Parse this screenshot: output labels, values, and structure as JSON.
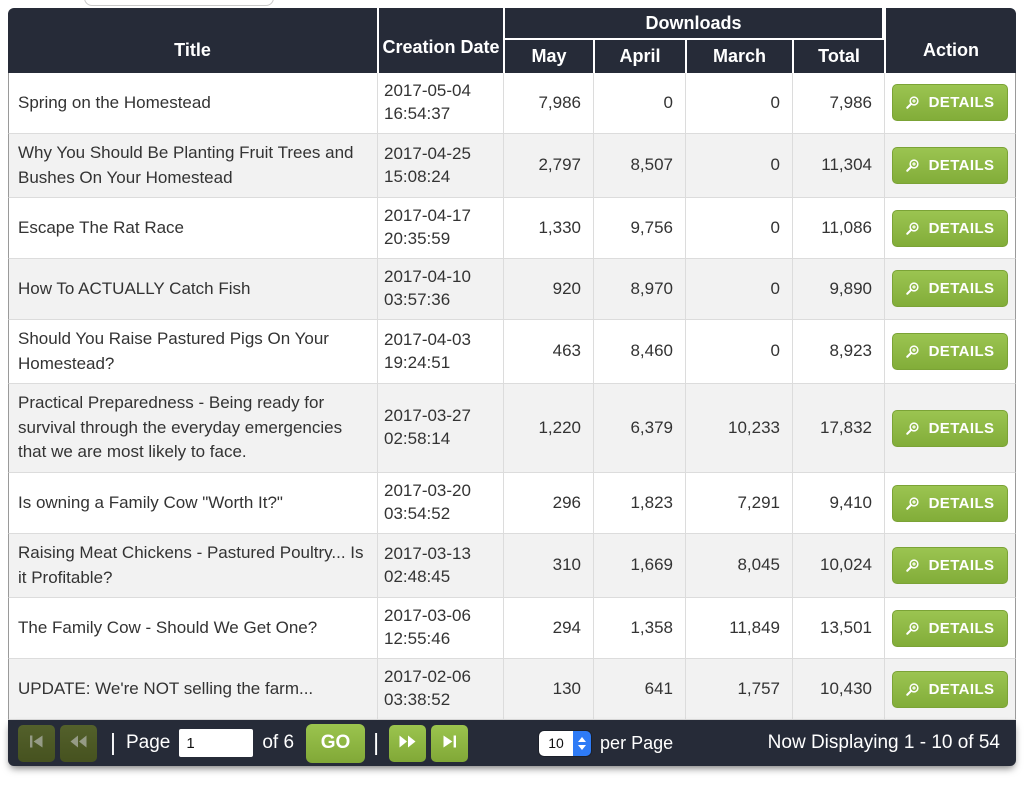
{
  "colors": {
    "header_bg": "#262b38",
    "accent_green": "#8cb43e",
    "disabled_green": "#4b5622",
    "select_blue": "#2e7bf6",
    "row_stripe": "#f2f2f2"
  },
  "table": {
    "headers": {
      "title": "Title",
      "creation_date": "Creation Date",
      "downloads": "Downloads",
      "may": "May",
      "april": "April",
      "march": "March",
      "total": "Total",
      "action": "Action"
    },
    "details_label": "DETAILS",
    "rows": [
      {
        "title": "Spring on the Homestead",
        "date": "2017-05-04 16:54:37",
        "may": "7,986",
        "april": "0",
        "march": "0",
        "total": "7,986"
      },
      {
        "title": "Why You Should Be Planting Fruit Trees and Bushes On Your Homestead",
        "date": "2017-04-25 15:08:24",
        "may": "2,797",
        "april": "8,507",
        "march": "0",
        "total": "11,304"
      },
      {
        "title": "Escape The Rat Race",
        "date": "2017-04-17 20:35:59",
        "may": "1,330",
        "april": "9,756",
        "march": "0",
        "total": "11,086"
      },
      {
        "title": "How To ACTUALLY Catch Fish",
        "date": "2017-04-10 03:57:36",
        "may": "920",
        "april": "8,970",
        "march": "0",
        "total": "9,890"
      },
      {
        "title": "Should You Raise Pastured Pigs On Your Homestead?",
        "date": "2017-04-03 19:24:51",
        "may": "463",
        "april": "8,460",
        "march": "0",
        "total": "8,923"
      },
      {
        "title": "Practical Preparedness - Being ready for survival through the everyday emergencies that we are most likely to face.",
        "date": "2017-03-27 02:58:14",
        "may": "1,220",
        "april": "6,379",
        "march": "10,233",
        "total": "17,832"
      },
      {
        "title": "Is owning a Family Cow \"Worth It?\"",
        "date": "2017-03-20 03:54:52",
        "may": "296",
        "april": "1,823",
        "march": "7,291",
        "total": "9,410"
      },
      {
        "title": "Raising Meat Chickens - Pastured Poultry... Is it Profitable?",
        "date": "2017-03-13 02:48:45",
        "may": "310",
        "april": "1,669",
        "march": "8,045",
        "total": "10,024"
      },
      {
        "title": "The Family Cow - Should We Get One?",
        "date": "2017-03-06 12:55:46",
        "may": "294",
        "april": "1,358",
        "march": "11,849",
        "total": "13,501"
      },
      {
        "title": "UPDATE: We're NOT selling the farm...",
        "date": "2017-02-06 03:38:52",
        "may": "130",
        "april": "641",
        "march": "1,757",
        "total": "10,430"
      }
    ]
  },
  "pagination": {
    "separator": "|",
    "page_label": "Page",
    "page_input_value": "1",
    "of_total_label": "of 6",
    "go_label": "GO",
    "per_page_value": "10",
    "per_page_label": "per Page",
    "status": "Now Displaying 1 - 10 of 54"
  }
}
